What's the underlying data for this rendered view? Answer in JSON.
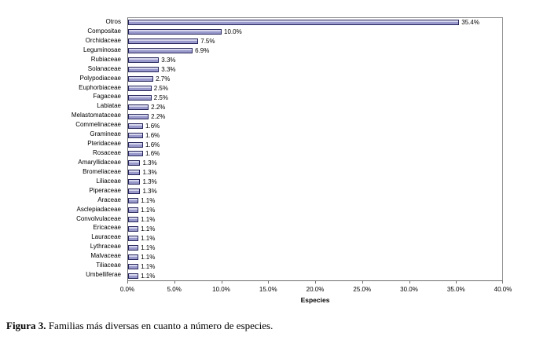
{
  "chart_data": {
    "type": "bar",
    "orientation": "horizontal",
    "title": "",
    "xlabel": "Especies",
    "ylabel": "",
    "xlim": [
      0,
      40
    ],
    "grid": false,
    "legend": "none",
    "categories": [
      "Otros",
      "Compositae",
      "Orchidaceae",
      "Leguminosae",
      "Rubiaceae",
      "Solanaceae",
      "Polypodiaceae",
      "Euphorbiaceae",
      "Fagaceae",
      "Labiatae",
      "Melastomataceae",
      "Commelinaceae",
      "Gramineae",
      "Pteridaceae",
      "Rosaceae",
      "Amaryllidaceae",
      "Bromeliaceae",
      "Liliaceae",
      "Piperaceae",
      "Araceae",
      "Asclepiadaceae",
      "Convolvulaceae",
      "Ericaceae",
      "Lauraceae",
      "Lythraceae",
      "Malvaceae",
      "Tiliaceae",
      "Umbelliferae"
    ],
    "values": [
      35.4,
      10.0,
      7.5,
      6.9,
      3.3,
      3.3,
      2.7,
      2.5,
      2.5,
      2.2,
      2.2,
      1.6,
      1.6,
      1.6,
      1.6,
      1.3,
      1.3,
      1.3,
      1.3,
      1.1,
      1.1,
      1.1,
      1.1,
      1.1,
      1.1,
      1.1,
      1.1,
      1.1
    ],
    "value_labels": [
      "35.4%",
      "10.0%",
      "7.5%",
      "6.9%",
      "3.3%",
      "3.3%",
      "2.7%",
      "2.5%",
      "2.5%",
      "2.2%",
      "2.2%",
      "1.6%",
      "1.6%",
      "1.6%",
      "1.6%",
      "1.3%",
      "1.3%",
      "1.3%",
      "1.3%",
      "1.1%",
      "1.1%",
      "1.1%",
      "1.1%",
      "1.1%",
      "1.1%",
      "1.1%",
      "1.1%",
      "1.1%"
    ],
    "x_ticks": [
      "0.0%",
      "5.0%",
      "10.0%",
      "15.0%",
      "20.0%",
      "25.0%",
      "30.0%",
      "35.0%",
      "40.0%"
    ],
    "x_tick_values": [
      0,
      5,
      10,
      15,
      20,
      25,
      30,
      35,
      40
    ],
    "colors": {
      "bar_fill": "#9999cc",
      "bar_highlight": "#d6d6ec",
      "bar_border": "#26265c",
      "axis_line": "#6d6d6d",
      "plot_background": "#ffffff"
    }
  },
  "caption": {
    "label": "Figura 3.",
    "text": " Familias más diversas en cuanto a número de especies."
  }
}
